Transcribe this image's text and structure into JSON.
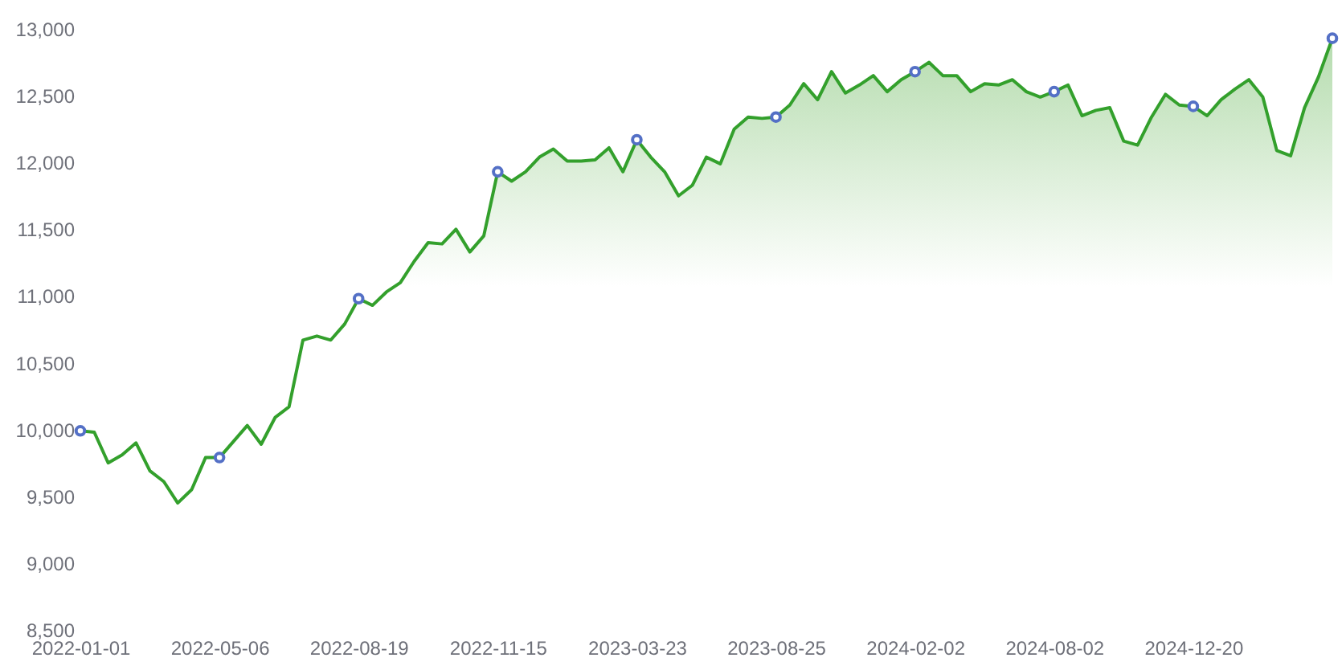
{
  "chart_data": {
    "type": "area",
    "categories": [
      "2022-01-01",
      null,
      null,
      null,
      null,
      null,
      null,
      null,
      null,
      null,
      "2022-05-06",
      null,
      null,
      null,
      null,
      null,
      null,
      null,
      null,
      null,
      "2022-08-19",
      null,
      null,
      null,
      null,
      null,
      null,
      null,
      null,
      null,
      "2022-11-15",
      null,
      null,
      null,
      null,
      null,
      null,
      null,
      null,
      null,
      "2023-03-23",
      null,
      null,
      null,
      null,
      null,
      null,
      null,
      null,
      null,
      "2023-08-25",
      null,
      null,
      null,
      null,
      null,
      null,
      null,
      null,
      null,
      "2024-02-02",
      null,
      null,
      null,
      null,
      null,
      null,
      null,
      null,
      null,
      "2024-08-02",
      null,
      null,
      null,
      null,
      null,
      null,
      null,
      null,
      null,
      "2024-12-20",
      null,
      null,
      null,
      null,
      null,
      null,
      null,
      null,
      null,
      null
    ],
    "ylim": [
      8500,
      13000
    ],
    "yticks": [
      {
        "value": 8500,
        "label": "8,500"
      },
      {
        "value": 9000,
        "label": "9,000"
      },
      {
        "value": 9500,
        "label": "9,500"
      },
      {
        "value": 10000,
        "label": "10,000"
      },
      {
        "value": 10500,
        "label": "10,500"
      },
      {
        "value": 11000,
        "label": "11,000"
      },
      {
        "value": 11500,
        "label": "11,500"
      },
      {
        "value": 12000,
        "label": "12,000"
      },
      {
        "value": 12500,
        "label": "12,500"
      },
      {
        "value": 13000,
        "label": "13,000"
      }
    ],
    "series": [
      {
        "color": "#33a02c",
        "values": [
          9990,
          9980,
          9750,
          9810,
          9900,
          9690,
          9610,
          9450,
          9550,
          9790,
          9790,
          9910,
          10030,
          9890,
          10090,
          10170,
          10670,
          10700,
          10670,
          10790,
          10980,
          10930,
          11030,
          11100,
          11260,
          11400,
          11390,
          11500,
          11330,
          11450,
          11930,
          11860,
          11930,
          12040,
          12100,
          12010,
          12010,
          12020,
          12110,
          11930,
          12170,
          12040,
          11930,
          11750,
          11830,
          12040,
          11990,
          12250,
          12340,
          12330,
          12340,
          12430,
          12590,
          12470,
          12680,
          12520,
          12580,
          12650,
          12530,
          12620,
          12680,
          12750,
          12650,
          12650,
          12530,
          12590,
          12580,
          12620,
          12530,
          12490,
          12530,
          12580,
          12350,
          12390,
          12410,
          12160,
          12130,
          12340,
          12510,
          12430,
          12420,
          12350,
          12470,
          12550,
          12620,
          12490,
          12090,
          12050,
          12410,
          12640,
          12930
        ]
      },
      {
        "type": "scatter",
        "marker": "circle",
        "color": "#5470c6",
        "values": [
          9990,
          null,
          null,
          null,
          null,
          null,
          null,
          null,
          null,
          null,
          9790,
          null,
          null,
          null,
          null,
          null,
          null,
          null,
          null,
          null,
          10980,
          null,
          null,
          null,
          null,
          null,
          null,
          null,
          null,
          null,
          11930,
          null,
          null,
          null,
          null,
          null,
          null,
          null,
          null,
          null,
          12170,
          null,
          null,
          null,
          null,
          null,
          null,
          null,
          null,
          null,
          12340,
          null,
          null,
          null,
          null,
          null,
          null,
          null,
          null,
          null,
          12680,
          null,
          null,
          null,
          null,
          null,
          null,
          null,
          null,
          null,
          12530,
          null,
          null,
          null,
          null,
          null,
          null,
          null,
          null,
          null,
          12420,
          null,
          null,
          null,
          null,
          null,
          null,
          null,
          null,
          null,
          12930
        ]
      }
    ]
  }
}
